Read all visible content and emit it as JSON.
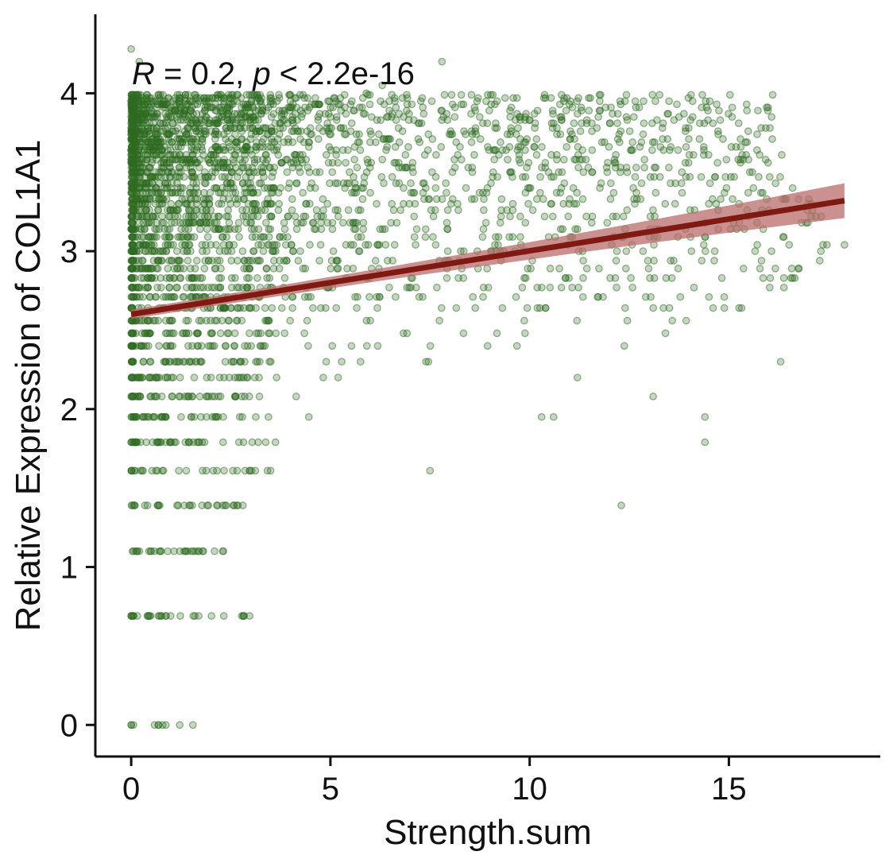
{
  "chart_data": {
    "type": "scatter",
    "xlabel": "Strength.sum",
    "ylabel": "Relative Expression of COL1A1",
    "xlim": [
      -0.9,
      18.8
    ],
    "ylim": [
      -0.2,
      4.5
    ],
    "x_ticks": [
      "0",
      "5",
      "10",
      "15"
    ],
    "y_ticks": [
      "0",
      "1",
      "2",
      "3",
      "4"
    ],
    "grid": false,
    "legend": "none",
    "annotation": {
      "r_symbol": "R",
      "r_text": " = 0.2, ",
      "p_symbol": "p",
      "p_text": " < 2.2e-16"
    },
    "colors": {
      "points": "#2e6b22",
      "regression_line": "#7f1a12",
      "confidence_band": "#b96b6b"
    },
    "points": {
      "levels": [
        0,
        0.69,
        1.1,
        1.39,
        1.61,
        1.79,
        1.95,
        2.08,
        2.2,
        2.3,
        2.4,
        2.48,
        2.56,
        2.64,
        2.71,
        2.77,
        2.83,
        2.89,
        2.94,
        3.0,
        3.04,
        3.09,
        3.14,
        3.18,
        3.22,
        3.26,
        3.3,
        3.33,
        3.37,
        3.4,
        3.43,
        3.47,
        3.5,
        3.53,
        3.56,
        3.58,
        3.61,
        3.64,
        3.66,
        3.69,
        3.71,
        3.74,
        3.76,
        3.78,
        3.81,
        3.83,
        3.85,
        3.87,
        3.89,
        3.91,
        3.93,
        3.95,
        3.97,
        3.99
      ],
      "x_max_by_level": [
        {
          "level": 0,
          "x_max": 1.8
        },
        {
          "level": 0.69,
          "x_max": 3.0
        },
        {
          "level": 1.1,
          "x_max": 2.6
        },
        {
          "level": 1.39,
          "x_max": 3.2
        },
        {
          "level": 1.61,
          "x_max": 4.0
        },
        {
          "level": 1.79,
          "x_max": 4.4
        },
        {
          "level": 1.95,
          "x_max": 4.5
        },
        {
          "level": 2.08,
          "x_max": 5.0
        },
        {
          "level": 2.2,
          "x_max": 7.0
        },
        {
          "level": 2.3,
          "x_max": 10.0
        },
        {
          "level": 2.4,
          "x_max": 13.0
        },
        {
          "level": 2.64,
          "x_max": 15.5
        },
        {
          "level": 3.0,
          "x_max": 18.0
        },
        {
          "level": 3.5,
          "x_max": 16.5
        },
        {
          "level": 3.99,
          "x_max": 16.0
        }
      ],
      "extra_points": [
        {
          "x": 7.5,
          "y": 1.61
        },
        {
          "x": 12.3,
          "y": 1.39
        },
        {
          "x": 14.4,
          "y": 1.79
        },
        {
          "x": 14.4,
          "y": 1.95
        },
        {
          "x": 10.3,
          "y": 1.95
        },
        {
          "x": 10.6,
          "y": 1.95
        },
        {
          "x": 13.1,
          "y": 2.08
        },
        {
          "x": 11.2,
          "y": 2.2
        },
        {
          "x": 16.3,
          "y": 2.3
        },
        {
          "x": 17.9,
          "y": 3.04
        },
        {
          "x": 16.1,
          "y": 3.99
        },
        {
          "x": 12.2,
          "y": 3.81
        },
        {
          "x": 14.6,
          "y": 3.81
        },
        {
          "x": 7.8,
          "y": 4.2
        },
        {
          "x": 0.2,
          "y": 4.2
        },
        {
          "x": 0.0,
          "y": 4.28
        },
        {
          "x": 5.9,
          "y": 4.0
        },
        {
          "x": 6.3,
          "y": 4.05
        }
      ]
    },
    "regression": {
      "x_start": 0.0,
      "y_start": 2.6,
      "x_end": 17.9,
      "y_end": 3.32,
      "ci_halfwidth_start": 0.03,
      "ci_halfwidth_end": 0.11
    }
  }
}
